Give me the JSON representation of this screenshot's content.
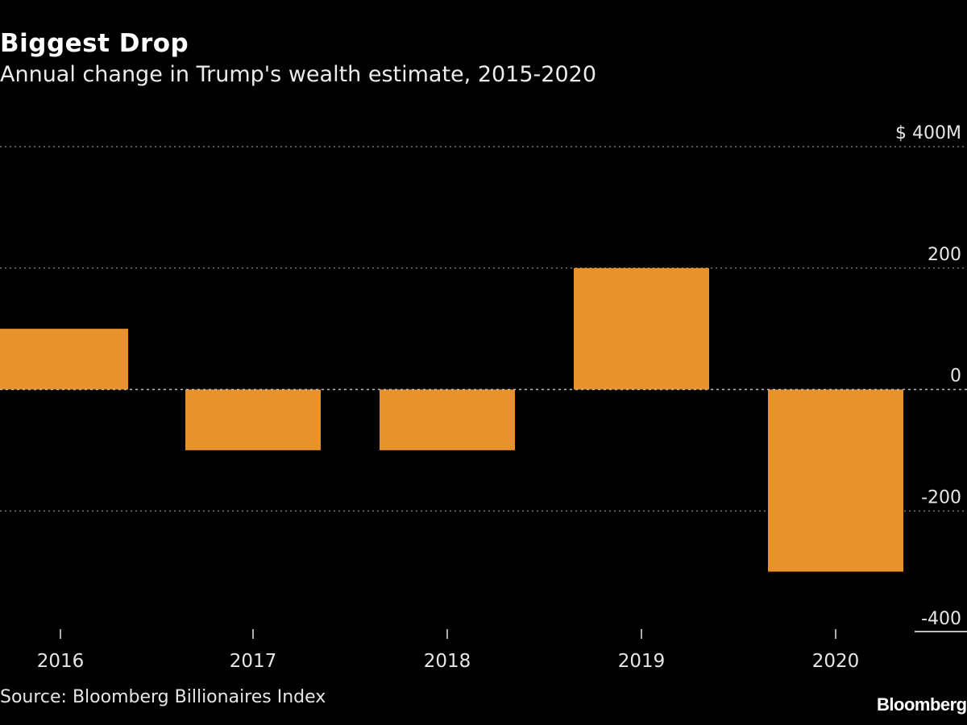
{
  "header": {
    "title": "Biggest Drop",
    "subtitle": "Annual change in Trump's wealth estimate, 2015-2020"
  },
  "footer": {
    "source": "Source: Bloomberg Billionaires Index",
    "brand": "Bloomberg"
  },
  "colors": {
    "bar": "#e8922b",
    "grid": "#8a8a8a",
    "baseline": "#bdbdbd",
    "tick_label": "#e6e6e6"
  },
  "chart_data": {
    "type": "bar",
    "title": "Biggest Drop",
    "subtitle": "Annual change in Trump's wealth estimate, 2015-2020",
    "categories": [
      "2016",
      "2017",
      "2018",
      "2019",
      "2020"
    ],
    "values": [
      100,
      -100,
      -100,
      200,
      -300
    ],
    "ylim": [
      -400,
      400
    ],
    "yticks": [
      400,
      200,
      0,
      -200,
      -400
    ],
    "ytick_labels": [
      "$ 400M",
      "200",
      "0",
      "-200",
      "-400"
    ],
    "xlabel": "",
    "ylabel": "",
    "grid": true,
    "y_axis_side": "right"
  }
}
